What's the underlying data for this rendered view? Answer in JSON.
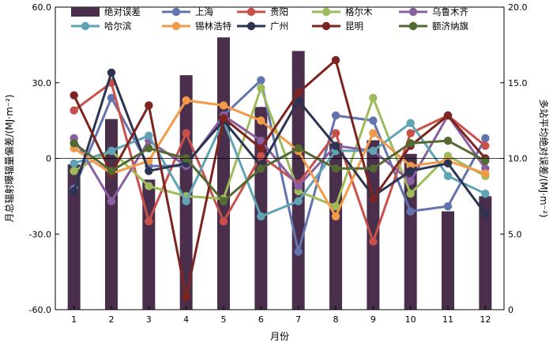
{
  "chart_data": {
    "type": "bar",
    "xlabel": "月份",
    "ylabel_left": "月总辐射曝辐量偏差/(MJ·m⁻²)",
    "ylabel_right": "多站平均绝对误差/(MJ·m⁻²)",
    "categories": [
      "1",
      "2",
      "3",
      "4",
      "5",
      "6",
      "7",
      "8",
      "9",
      "10",
      "11",
      "12"
    ],
    "ylim_left": [
      -60,
      60
    ],
    "yticks_left": [
      "-60.0",
      "-30.0",
      "0",
      "30.0",
      "60.0"
    ],
    "ylim_right": [
      0,
      20
    ],
    "yticks_right": [
      "0",
      "5.0",
      "10.0",
      "15.0",
      "20.0"
    ],
    "bar_series": {
      "name": "绝对误差",
      "color": "#4a2f4d",
      "values": [
        9.6,
        12.6,
        8.6,
        15.5,
        18.0,
        13.4,
        17.1,
        11.0,
        11.2,
        10.3,
        6.5,
        7.5
      ]
    },
    "series": [
      {
        "name": "上海",
        "color": "#6273ad",
        "values": [
          -12,
          24,
          -3,
          -3,
          17,
          31,
          -37,
          17,
          15,
          -21,
          -19,
          8
        ]
      },
      {
        "name": "贵阳",
        "color": "#c8504a",
        "values": [
          19,
          30,
          -25,
          10,
          -25,
          1,
          -10,
          10,
          -33,
          10,
          17,
          5
        ]
      },
      {
        "name": "格尔木",
        "color": "#9dbb5b",
        "values": [
          -5,
          3,
          -11,
          -15,
          -16,
          28,
          -13,
          -19,
          24,
          -14,
          1,
          -7
        ]
      },
      {
        "name": "乌鲁木齐",
        "color": "#8a5fa0",
        "values": [
          8,
          -17,
          7,
          -3,
          17,
          7,
          -11,
          5,
          3,
          -9,
          17,
          -4
        ]
      },
      {
        "name": "哈尔滨",
        "color": "#5fa3b5",
        "values": [
          -2,
          3,
          9,
          -17,
          15,
          -23,
          -17,
          3,
          3,
          14,
          -7,
          -14
        ]
      },
      {
        "name": "锡林浩特",
        "color": "#f19a49",
        "values": [
          4,
          -6,
          -1,
          23,
          21,
          15,
          3,
          -23,
          10,
          -3,
          -1,
          -6
        ]
      },
      {
        "name": "广州",
        "color": "#2c3452",
        "values": [
          -13,
          34,
          -5,
          -2,
          15,
          -3,
          23,
          5,
          -15,
          -5,
          -2,
          -22
        ]
      },
      {
        "name": "昆明",
        "color": "#7c2420",
        "values": [
          25,
          -6,
          21,
          -55,
          16,
          4,
          26,
          39,
          -16,
          5,
          17,
          0
        ]
      },
      {
        "name": "额济纳旗",
        "color": "#556a32",
        "values": [
          6,
          -5,
          4,
          0,
          -17,
          -4,
          4,
          -4,
          -4,
          6,
          7,
          -1
        ]
      }
    ],
    "legend": [
      "绝对误差",
      "上海",
      "贵阳",
      "格尔木",
      "乌鲁木齐",
      "哈尔滨",
      "锡林浩特",
      "广州",
      "昆明",
      "额济纳旗"
    ],
    "legend_placement": "top",
    "grid": false
  }
}
